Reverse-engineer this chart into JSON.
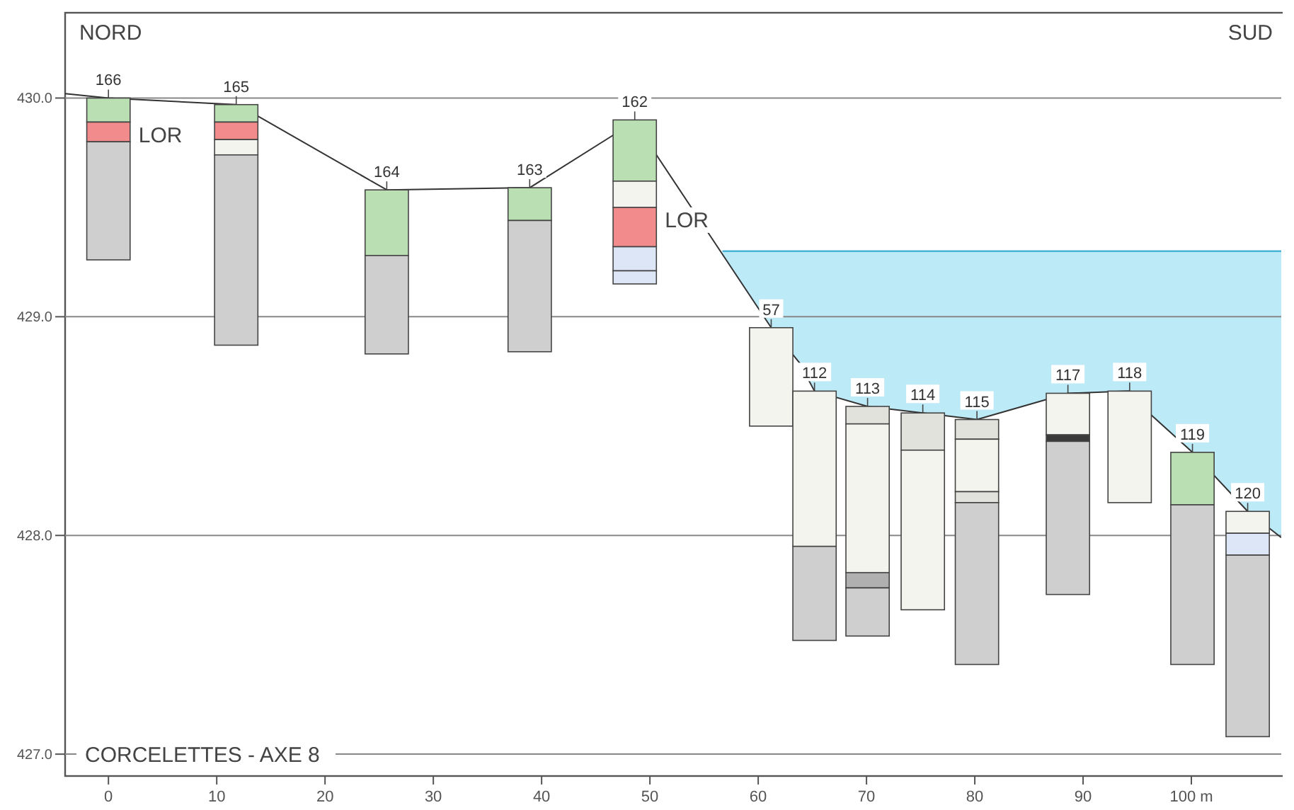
{
  "chart_data": {
    "type": "bar",
    "title": "CORCELETTES - AXE 8",
    "x": [
      0,
      11.8,
      25.7,
      38.9,
      48.6,
      61.2,
      65.2,
      70.1,
      75.2,
      80.2,
      88.6,
      94.3,
      100.1,
      105.2
    ],
    "series": [
      {
        "base": [
          429.89,
          429.89,
          429.28,
          429.44,
          429.62,
          428.5,
          427.95,
          428.51,
          428.39,
          428.44,
          428.46,
          428.15,
          428.14,
          428.01
        ],
        "values": [
          0.11,
          0.08,
          0.3,
          0.15,
          0.28,
          0.45,
          0.71,
          0.08,
          0.17,
          0.09,
          0.19,
          0.51,
          0.24,
          0.1
        ],
        "colors": [
          "#b9dfb2",
          "#b9dfb2",
          "#b9dfb2",
          "#b9dfb2",
          "#b9dfb2",
          "#f4f4ee",
          "#f4f4ee",
          "#e2e2dc",
          "#e2e2dc",
          "#e2e2dc",
          "#f4f4ee",
          "#f4f4ee",
          "#b9dfb2",
          "#f4f4ee"
        ]
      },
      {
        "base": [
          429.8,
          429.81,
          428.83,
          428.84,
          429.5,
          null,
          427.52,
          427.83,
          427.66,
          428.2,
          428.43,
          null,
          427.41,
          427.91
        ],
        "values": [
          0.09,
          0.08,
          0.45,
          0.6,
          0.12,
          null,
          0.43,
          0.68,
          0.73,
          0.24,
          0.03,
          null,
          0.73,
          0.1
        ],
        "colors": [
          "#f28b8b",
          "#f28b8b",
          "#cfcfcf",
          "#cfcfcf",
          "#f4f4ee",
          null,
          "#cfcfcf",
          "#f4f4ee",
          "#f4f4ee",
          "#f4f4ee",
          "#3a3a3a",
          null,
          "#cfcfcf",
          "#dce6f7"
        ]
      },
      {
        "base": [
          429.26,
          429.74,
          null,
          null,
          429.32,
          null,
          null,
          427.76,
          null,
          428.15,
          427.73,
          null,
          null,
          427.08
        ],
        "values": [
          0.54,
          0.07,
          null,
          null,
          0.18,
          null,
          null,
          0.07,
          null,
          0.05,
          0.7,
          null,
          null,
          0.83
        ],
        "colors": [
          "#cfcfcf",
          "#f4f4ee",
          null,
          null,
          "#f28b8b",
          null,
          null,
          "#b0b0b0",
          null,
          "#e2e2dc",
          "#cfcfcf",
          null,
          null,
          "#cfcfcf"
        ]
      },
      {
        "base": [
          null,
          428.87,
          null,
          null,
          429.21,
          null,
          null,
          427.54,
          null,
          427.41,
          null,
          null,
          null,
          null
        ],
        "values": [
          null,
          0.87,
          null,
          null,
          0.11,
          null,
          null,
          0.22,
          null,
          0.74,
          null,
          null,
          null,
          null
        ],
        "colors": [
          null,
          "#cfcfcf",
          null,
          null,
          "#dce6f7",
          null,
          null,
          "#cfcfcf",
          null,
          "#cfcfcf",
          null,
          null,
          null,
          null
        ]
      },
      {
        "base": [
          null,
          null,
          null,
          null,
          429.15,
          null,
          null,
          null,
          null,
          null,
          null,
          null,
          null,
          null
        ],
        "values": [
          null,
          null,
          null,
          null,
          0.06,
          null,
          null,
          null,
          null,
          null,
          null,
          null,
          null,
          null
        ],
        "colors": [
          null,
          null,
          null,
          null,
          "#dce6f7",
          null,
          null,
          null,
          null,
          null,
          null,
          null,
          null,
          null
        ]
      },
      {
        "type": "area",
        "color": "#bdeaf7",
        "x": [
          56.7,
          108.3
        ],
        "values": [
          429.3,
          429.3
        ]
      },
      {
        "type": "line",
        "color": "#333333",
        "x": [
          -4,
          0,
          11.8,
          13.7,
          25.7,
          38.9,
          46.6,
          50.6,
          61.2,
          63.8,
          65.2,
          70.1,
          75.2,
          80.2,
          88.6,
          94.3,
          96.3,
          100.1,
          105.2,
          108.3
        ],
        "values": [
          430.02,
          430.0,
          429.97,
          429.92,
          429.58,
          429.59,
          429.83,
          429.74,
          428.95,
          428.79,
          428.66,
          428.59,
          428.56,
          428.53,
          428.65,
          428.66,
          428.55,
          428.38,
          428.11,
          427.99
        ]
      }
    ],
    "xlim": [
      -4,
      108.3
    ],
    "xticks": [
      0,
      10,
      20,
      30,
      40,
      50,
      60,
      70,
      80,
      90,
      {
        "value": 100,
        "label": "100 m"
      }
    ],
    "ylim": [
      426.9,
      430.39
    ],
    "yticks": [
      {
        "value": 427,
        "label": "427.0"
      },
      {
        "value": 428,
        "label": "428.0"
      },
      {
        "value": 429,
        "label": "429.0"
      },
      {
        "value": 430,
        "label": "430.0"
      }
    ],
    "grid": "y",
    "annotations": [
      "NORD",
      "SUD",
      {
        "text": "LOR",
        "x": 0,
        "y": 429.89
      },
      {
        "text": "LOR",
        "x": 48.6,
        "y": 429.5
      },
      {
        "text": "166",
        "x": 0,
        "y": 430.0
      },
      {
        "text": "165",
        "x": 11.8,
        "y": 429.97
      },
      {
        "text": "164",
        "x": 25.7,
        "y": 429.58
      },
      {
        "text": "163",
        "x": 38.9,
        "y": 429.59
      },
      {
        "text": "162",
        "x": 48.6,
        "y": 429.9
      },
      {
        "text": "57",
        "x": 61.2,
        "y": 428.95
      },
      {
        "text": "112",
        "x": 65.2,
        "y": 428.66
      },
      {
        "text": "113",
        "x": 70.1,
        "y": 428.59
      },
      {
        "text": "114",
        "x": 75.2,
        "y": 428.56
      },
      {
        "text": "115",
        "x": 80.2,
        "y": 428.53
      },
      {
        "text": "117",
        "x": 88.6,
        "y": 428.65
      },
      {
        "text": "118",
        "x": 94.3,
        "y": 428.66
      },
      {
        "text": "119",
        "x": 100.1,
        "y": 428.38
      },
      {
        "text": "120",
        "x": 105.2,
        "y": 428.11
      }
    ]
  }
}
